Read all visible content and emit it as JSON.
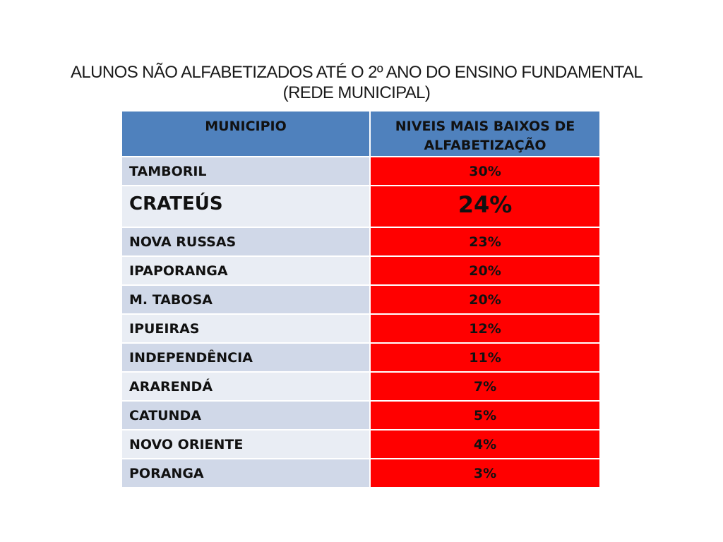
{
  "title": {
    "line1": "ALUNOS NÃO ALFABETIZADOS ATÉ O 2º ANO DO ENSINO FUNDAMENTAL",
    "line2": "(REDE MUNICIPAL)"
  },
  "table": {
    "headers": [
      "MUNICIPIO",
      "NIVEIS MAIS BAIXOS DE ALFABETIZAÇÃO"
    ],
    "rows": [
      {
        "municipio": "TAMBORIL",
        "valor": "30%"
      },
      {
        "municipio": "CRATEÚS",
        "valor": "24%"
      },
      {
        "municipio": "NOVA RUSSAS",
        "valor": "23%"
      },
      {
        "municipio": "IPAPORANGA",
        "valor": "20%"
      },
      {
        "municipio": "M. TABOSA",
        "valor": "20%"
      },
      {
        "municipio": "IPUEIRAS",
        "valor": "12%"
      },
      {
        "municipio": "INDEPENDÊNCIA",
        "valor": "11%"
      },
      {
        "municipio": "ARARENDÁ",
        "valor": "7%"
      },
      {
        "municipio": "CATUNDA",
        "valor": "5%"
      },
      {
        "municipio": "NOVO ORIENTE",
        "valor": "4%"
      },
      {
        "municipio": "PORANGA",
        "valor": "3%"
      }
    ]
  },
  "colors": {
    "header": "#4f81bd",
    "value_cell": "#ff0000",
    "row_odd": "#d0d8e8",
    "row_even": "#e9edf4"
  }
}
